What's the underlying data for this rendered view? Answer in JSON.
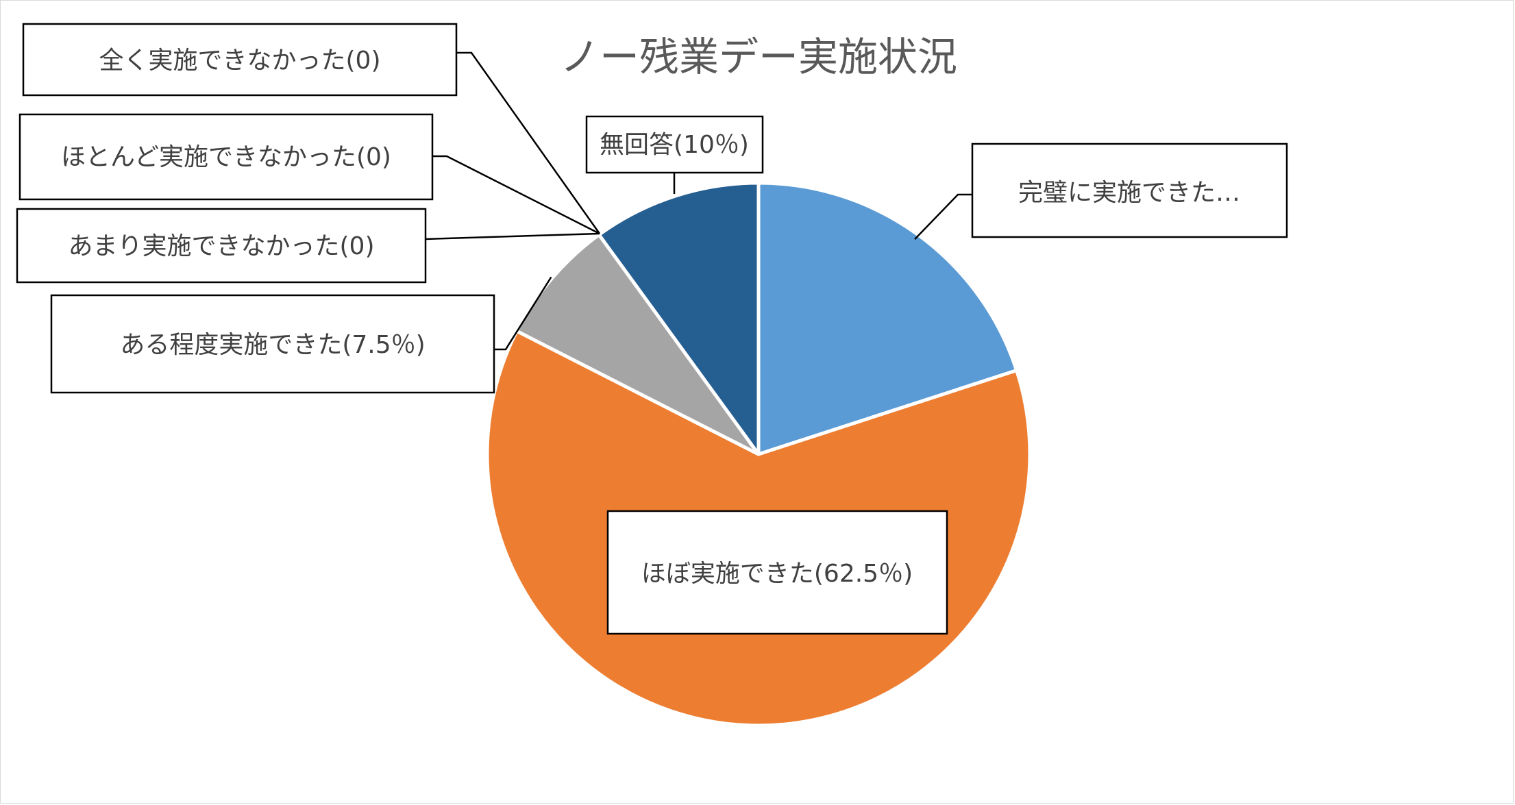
{
  "chart_data": {
    "type": "pie",
    "title": "ノー残業デー実施状況",
    "categories": [
      "完璧に実施できた",
      "ほぼ実施できた",
      "ある程度実施できた",
      "あまり実施できなかった",
      "ほとんど実施できなかった",
      "全く実施できなかった",
      "無回答"
    ],
    "values": [
      20,
      62.5,
      7.5,
      0,
      0,
      0,
      10
    ],
    "colors": [
      "#5b9bd5",
      "#ed7d31",
      "#a5a5a5",
      "#ffc000",
      "#4472c4",
      "#70ad47",
      "#255e91"
    ],
    "data_labels": [
      "完璧に実施できた…",
      "ほぼ実施できた(62.5％)",
      "ある程度実施できた(7.5％)",
      "あまり実施できなかった(0)",
      "ほとんど実施できなかった(0)",
      "全く実施できなかった(0)",
      "無回答(10％)"
    ],
    "start_angle_deg": 0,
    "direction": "clockwise",
    "legend": "none"
  }
}
